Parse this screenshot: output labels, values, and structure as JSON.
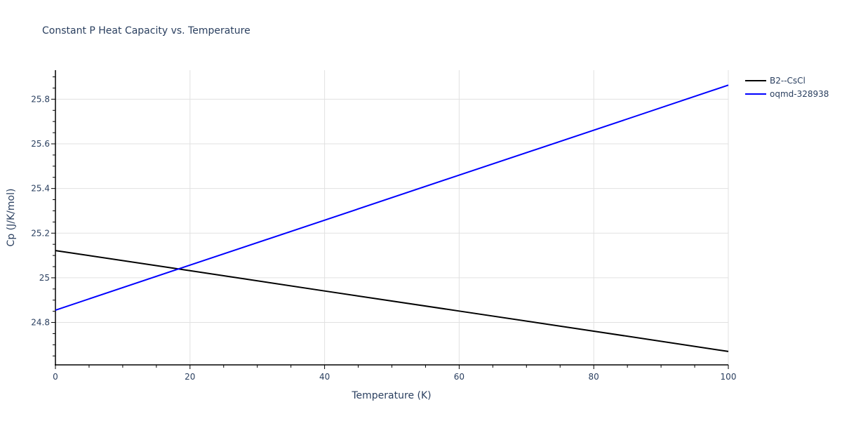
{
  "chart_data": {
    "type": "line",
    "title": "Constant P Heat Capacity vs. Temperature",
    "xlabel": "Temperature (K)",
    "ylabel": "Cp (J/K/mol)",
    "xlim": [
      0,
      100
    ],
    "ylim": [
      24.61,
      25.93
    ],
    "x_ticks": [
      0,
      20,
      40,
      60,
      80,
      100
    ],
    "y_ticks": [
      24.8,
      25,
      25.2,
      25.4,
      25.6,
      25.8
    ],
    "y_tick_labels": [
      "24.8",
      "25",
      "25.2",
      "25.4",
      "25.6",
      "25.8"
    ],
    "grid": true,
    "legend_position": "top-right outside",
    "x": [
      0,
      20,
      40,
      60,
      80,
      100
    ],
    "series": [
      {
        "name": "B2--CsCl",
        "color": "#000000",
        "values": [
          25.122,
          25.032,
          24.941,
          24.851,
          24.761,
          24.67
        ]
      },
      {
        "name": "oqmd-328938",
        "color": "#0000ff",
        "values": [
          24.855,
          25.057,
          25.258,
          25.46,
          25.661,
          25.863
        ]
      }
    ]
  }
}
